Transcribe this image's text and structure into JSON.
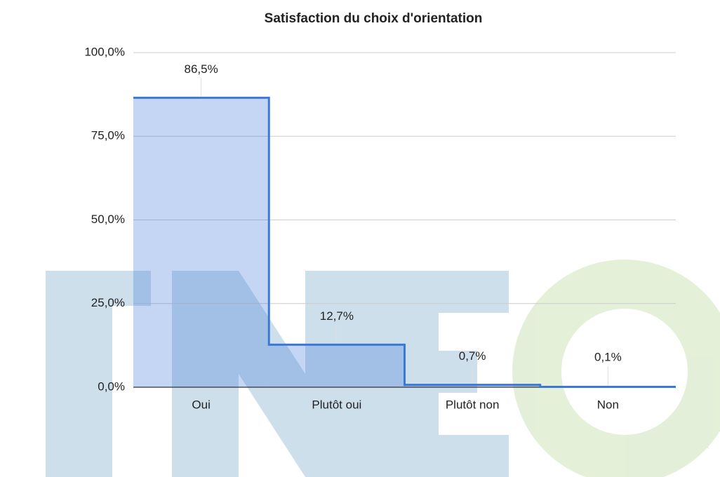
{
  "chart_data": {
    "type": "stepped_area",
    "title": "Satisfaction du choix d'orientation",
    "categories": [
      "Oui",
      "Plutôt oui",
      "Plutôt non",
      "Non"
    ],
    "values": [
      86.5,
      12.7,
      0.7,
      0.1
    ],
    "value_labels": [
      "86,5%",
      "12,7%",
      "0,7%",
      "0,1%"
    ],
    "color": "#3c78d8",
    "ylim": [
      0,
      100
    ],
    "yticks": [
      {
        "value": 0,
        "label": "0,0%"
      },
      {
        "value": 25,
        "label": "25,0%"
      },
      {
        "value": 50,
        "label": "50,0%"
      },
      {
        "value": 75,
        "label": "75,0%"
      },
      {
        "value": 100,
        "label": "100,0%"
      }
    ],
    "grid": true
  }
}
